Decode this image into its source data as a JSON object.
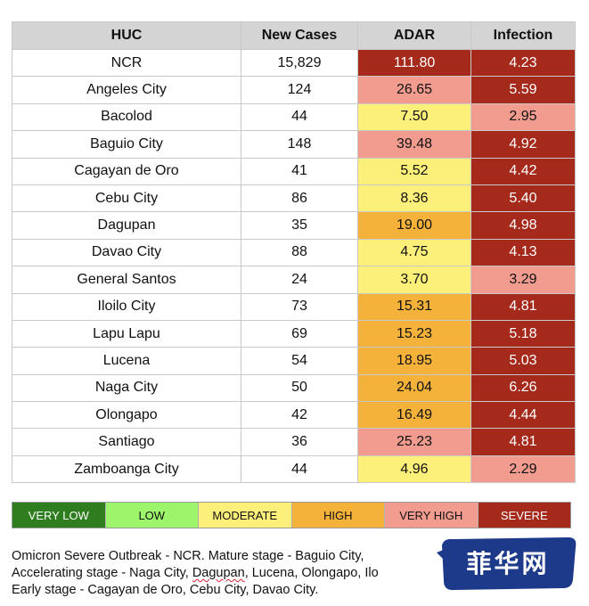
{
  "table": {
    "headers": {
      "huc": "HUC",
      "new_cases": "New Cases",
      "adar": "ADAR",
      "infection": "Infection"
    },
    "rows": [
      {
        "huc": "NCR",
        "new_cases": "15,829",
        "adar": "111.80",
        "adar_level": "severe",
        "infection": "4.23",
        "infection_level": "severe"
      },
      {
        "huc": "Angeles City",
        "new_cases": "124",
        "adar": "26.65",
        "adar_level": "very_high",
        "infection": "5.59",
        "infection_level": "severe"
      },
      {
        "huc": "Bacolod",
        "new_cases": "44",
        "adar": "7.50",
        "adar_level": "moderate",
        "infection": "2.95",
        "infection_level": "very_high"
      },
      {
        "huc": "Baguio City",
        "new_cases": "148",
        "adar": "39.48",
        "adar_level": "very_high",
        "infection": "4.92",
        "infection_level": "severe"
      },
      {
        "huc": "Cagayan de Oro",
        "new_cases": "41",
        "adar": "5.52",
        "adar_level": "moderate",
        "infection": "4.42",
        "infection_level": "severe"
      },
      {
        "huc": "Cebu City",
        "new_cases": "86",
        "adar": "8.36",
        "adar_level": "moderate",
        "infection": "5.40",
        "infection_level": "severe"
      },
      {
        "huc": "Dagupan",
        "new_cases": "35",
        "adar": "19.00",
        "adar_level": "high",
        "infection": "4.98",
        "infection_level": "severe"
      },
      {
        "huc": "Davao City",
        "new_cases": "88",
        "adar": "4.75",
        "adar_level": "moderate",
        "infection": "4.13",
        "infection_level": "severe"
      },
      {
        "huc": "General Santos",
        "new_cases": "24",
        "adar": "3.70",
        "adar_level": "moderate",
        "infection": "3.29",
        "infection_level": "very_high"
      },
      {
        "huc": "Iloilo City",
        "new_cases": "73",
        "adar": "15.31",
        "adar_level": "high",
        "infection": "4.81",
        "infection_level": "severe"
      },
      {
        "huc": "Lapu Lapu",
        "new_cases": "69",
        "adar": "15.23",
        "adar_level": "high",
        "infection": "5.18",
        "infection_level": "severe"
      },
      {
        "huc": "Lucena",
        "new_cases": "54",
        "adar": "18.95",
        "adar_level": "high",
        "infection": "5.03",
        "infection_level": "severe"
      },
      {
        "huc": "Naga City",
        "new_cases": "50",
        "adar": "24.04",
        "adar_level": "high",
        "infection": "6.26",
        "infection_level": "severe"
      },
      {
        "huc": "Olongapo",
        "new_cases": "42",
        "adar": "16.49",
        "adar_level": "high",
        "infection": "4.44",
        "infection_level": "severe"
      },
      {
        "huc": "Santiago",
        "new_cases": "36",
        "adar": "25.23",
        "adar_level": "very_high",
        "infection": "4.81",
        "infection_level": "severe"
      },
      {
        "huc": "Zamboanga City",
        "new_cases": "44",
        "adar": "4.96",
        "adar_level": "moderate",
        "infection": "2.29",
        "infection_level": "very_high"
      }
    ]
  },
  "legend": [
    {
      "key": "very_low",
      "label": "VERY LOW",
      "color": "#2e7d1e"
    },
    {
      "key": "low",
      "label": "LOW",
      "color": "#9cf56a"
    },
    {
      "key": "moderate",
      "label": "MODERATE",
      "color": "#fdf07a"
    },
    {
      "key": "high",
      "label": "HIGH",
      "color": "#f4b23b"
    },
    {
      "key": "very_high",
      "label": "VERY HIGH",
      "color": "#f29b8f"
    },
    {
      "key": "severe",
      "label": "SEVERE",
      "color": "#a52a1c"
    }
  ],
  "notes": {
    "line1": "Omicron Severe Outbreak - NCR. Mature stage - Baguio City,",
    "line2_prefix": "Accelerating stage - Naga City, ",
    "line2_squiggle": "Dagupan",
    "line2_suffix": ", Lucena, Olongapo, Ilo",
    "line3": "Early stage -  Cagayan de Oro, Cebu City, Davao City."
  },
  "watermark": {
    "text": "菲华网",
    "color": "#1d3a8a"
  }
}
